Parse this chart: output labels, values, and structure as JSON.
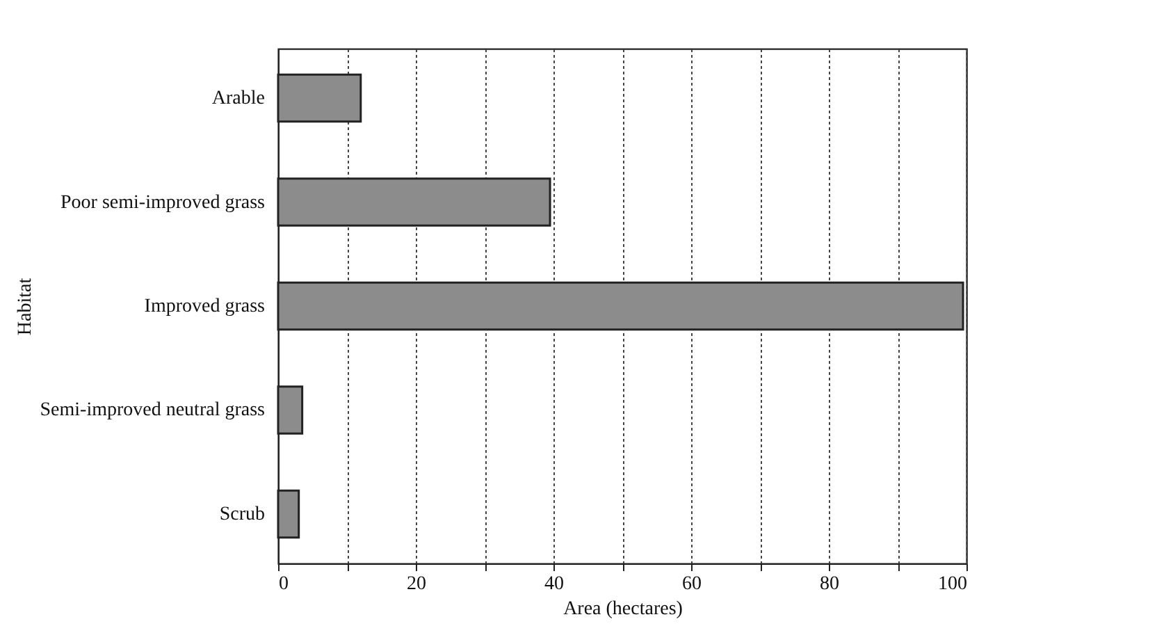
{
  "chart_data": {
    "type": "bar",
    "orientation": "horizontal",
    "xlabel": "Area (hectares)",
    "ylabel": "Habitat",
    "categories": [
      "Arable",
      "Poor semi-improved grass",
      "Improved grass",
      "Semi-improved neutral grass",
      "Scrub"
    ],
    "values": [
      12,
      39.5,
      99.5,
      3.5,
      3
    ],
    "color": "#8c8c8c",
    "xlim": [
      0,
      100
    ],
    "xticks": [
      0,
      {
        "value": 10,
        "label": null
      },
      20,
      {
        "value": 30,
        "label": null
      },
      40,
      {
        "value": 50,
        "label": null
      },
      60,
      {
        "value": 70,
        "label": null
      },
      80,
      {
        "value": 90,
        "label": null
      },
      100
    ],
    "grid": "x"
  }
}
